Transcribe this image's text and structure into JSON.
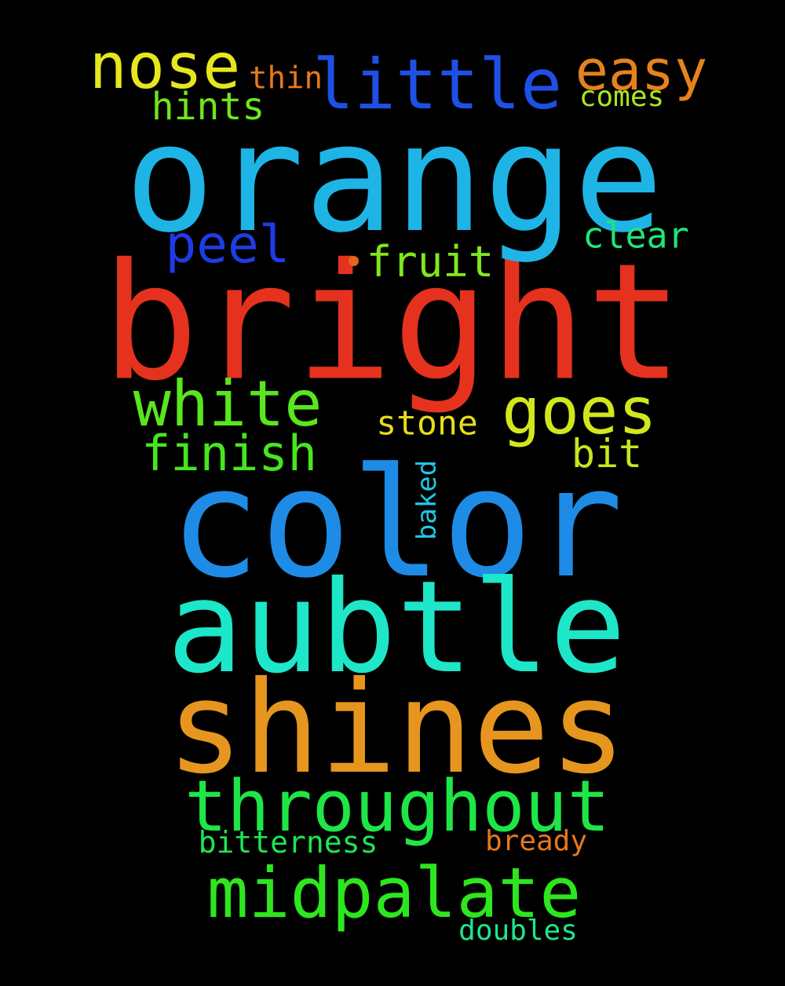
{
  "cloud": {
    "words": [
      {
        "text": "bright",
        "color": "#e5321e"
      },
      {
        "text": "orange",
        "color": "#1eb4e6"
      },
      {
        "text": "color",
        "color": "#1e8ce6"
      },
      {
        "text": "aubtle",
        "color": "#1ee6c8"
      },
      {
        "text": "shines",
        "color": "#e6961e"
      },
      {
        "text": "throughout",
        "color": "#1ee646"
      },
      {
        "text": "midpalate",
        "color": "#2ee61e"
      },
      {
        "text": "little",
        "color": "#1e50e6"
      },
      {
        "text": "nose",
        "color": "#e6e61e"
      },
      {
        "text": "easy",
        "color": "#e6821e"
      },
      {
        "text": "white",
        "color": "#5ae61e"
      },
      {
        "text": "goes",
        "color": "#d2e61e"
      },
      {
        "text": "finish",
        "color": "#46e61e"
      },
      {
        "text": "peel",
        "color": "#1e3ce6"
      },
      {
        "text": "fruit",
        "color": "#82e61e"
      },
      {
        "text": "clear",
        "color": "#1ee678"
      },
      {
        "text": "stone",
        "color": "#e6dc1e"
      },
      {
        "text": "bit",
        "color": "#c8e61e"
      },
      {
        "text": "hints",
        "color": "#6ee61e"
      },
      {
        "text": "comes",
        "color": "#aae61e"
      },
      {
        "text": "thin",
        "color": "#e6781e"
      },
      {
        "text": "baked",
        "color": "#1ec8e6"
      },
      {
        "text": "bitterness",
        "color": "#1ee650"
      },
      {
        "text": "bready",
        "color": "#e6781e"
      },
      {
        "text": "doubles",
        "color": "#1ee68c"
      }
    ],
    "dot_color": "#e6641e"
  }
}
